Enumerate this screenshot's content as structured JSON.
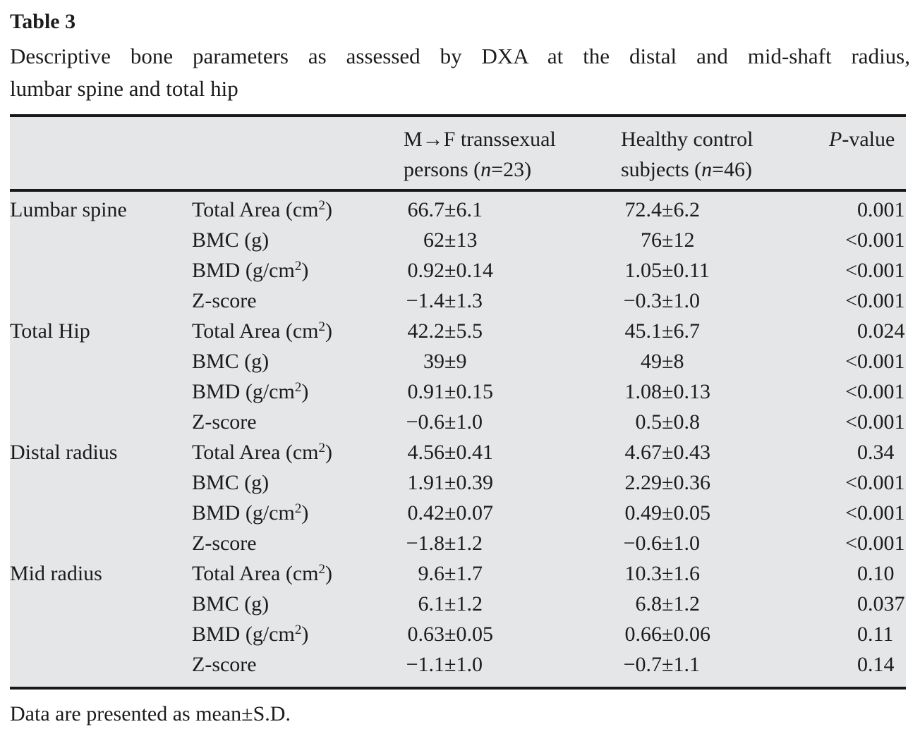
{
  "colors": {
    "table_bg": "#e5e6e7",
    "rule": "#191919",
    "text": "#1c1c1c"
  },
  "title": "Table 3",
  "caption_line1": "Descriptive bone parameters as assessed by DXA at the distal and mid-shaft radius,",
  "caption_line2": "lumbar spine and total hip",
  "header": {
    "col_transsexual": {
      "line1": "M→F transsexual",
      "line2_pre": "persons (",
      "line2_var": "n",
      "line2_post": "=23)"
    },
    "col_control": {
      "line1": "Healthy control",
      "line2_pre": "subjects (",
      "line2_var": "n",
      "line2_post": "=46)"
    },
    "col_pvalue": {
      "var": "P",
      "post": "-value"
    }
  },
  "pm": "±",
  "groups": [
    {
      "label": "Lumbar spine",
      "rows": [
        {
          "param_pre": "Total Area (cm",
          "param_sup": "2",
          "param_post": ")",
          "t_num": "66.7",
          "t_sd": "6.1",
          "c_num": "72.4",
          "c_sd": "6.2",
          "p_lt": "",
          "p_val": "0.001"
        },
        {
          "param_pre": "BMC (g)",
          "param_sup": "",
          "param_post": "",
          "t_num": "62",
          "t_sd": "13",
          "c_num": "76",
          "c_sd": "12",
          "p_lt": "<",
          "p_val": "0.001"
        },
        {
          "param_pre": "BMD (g/cm",
          "param_sup": "2",
          "param_post": ")",
          "t_num": "0.92",
          "t_sd": "0.14",
          "c_num": "1.05",
          "c_sd": "0.11",
          "p_lt": "<",
          "p_val": "0.001"
        },
        {
          "param_pre": "Z-score",
          "param_sup": "",
          "param_post": "",
          "t_num": "−1.4",
          "t_sd": "1.3",
          "c_num": "−0.3",
          "c_sd": "1.0",
          "p_lt": "<",
          "p_val": "0.001"
        }
      ]
    },
    {
      "label": "Total Hip",
      "rows": [
        {
          "param_pre": "Total Area (cm",
          "param_sup": "2",
          "param_post": ")",
          "t_num": "42.2",
          "t_sd": "5.5",
          "c_num": "45.1",
          "c_sd": "6.7",
          "p_lt": "",
          "p_val": "0.024"
        },
        {
          "param_pre": "BMC (g)",
          "param_sup": "",
          "param_post": "",
          "t_num": "39",
          "t_sd": "9",
          "c_num": "49",
          "c_sd": "8",
          "p_lt": "<",
          "p_val": "0.001"
        },
        {
          "param_pre": "BMD (g/cm",
          "param_sup": "2",
          "param_post": ")",
          "t_num": "0.91",
          "t_sd": "0.15",
          "c_num": "1.08",
          "c_sd": "0.13",
          "p_lt": "<",
          "p_val": "0.001"
        },
        {
          "param_pre": "Z-score",
          "param_sup": "",
          "param_post": "",
          "t_num": "−0.6",
          "t_sd": "1.0",
          "c_num": "0.5",
          "c_sd": "0.8",
          "p_lt": "<",
          "p_val": "0.001"
        }
      ]
    },
    {
      "label": "Distal radius",
      "rows": [
        {
          "param_pre": "Total Area (cm",
          "param_sup": "2",
          "param_post": ")",
          "t_num": "4.56",
          "t_sd": "0.41",
          "c_num": "4.67",
          "c_sd": "0.43",
          "p_lt": "",
          "p_val": "0.34"
        },
        {
          "param_pre": "BMC (g)",
          "param_sup": "",
          "param_post": "",
          "t_num": "1.91",
          "t_sd": "0.39",
          "c_num": "2.29",
          "c_sd": "0.36",
          "p_lt": "<",
          "p_val": "0.001"
        },
        {
          "param_pre": "BMD (g/cm",
          "param_sup": "2",
          "param_post": ")",
          "t_num": "0.42",
          "t_sd": "0.07",
          "c_num": "0.49",
          "c_sd": "0.05",
          "p_lt": "<",
          "p_val": "0.001"
        },
        {
          "param_pre": "Z-score",
          "param_sup": "",
          "param_post": "",
          "t_num": "−1.8",
          "t_sd": "1.2",
          "c_num": "−0.6",
          "c_sd": "1.0",
          "p_lt": "<",
          "p_val": "0.001"
        }
      ]
    },
    {
      "label": "Mid radius",
      "rows": [
        {
          "param_pre": "Total Area (cm",
          "param_sup": "2",
          "param_post": ")",
          "t_num": "9.6",
          "t_sd": "1.7",
          "c_num": "10.3",
          "c_sd": "1.6",
          "p_lt": "",
          "p_val": "0.10"
        },
        {
          "param_pre": "BMC (g)",
          "param_sup": "",
          "param_post": "",
          "t_num": "6.1",
          "t_sd": "1.2",
          "c_num": "6.8",
          "c_sd": "1.2",
          "p_lt": "",
          "p_val": "0.037"
        },
        {
          "param_pre": "BMD (g/cm",
          "param_sup": "2",
          "param_post": ")",
          "t_num": "0.63",
          "t_sd": "0.05",
          "c_num": "0.66",
          "c_sd": "0.06",
          "p_lt": "",
          "p_val": "0.11"
        },
        {
          "param_pre": "Z-score",
          "param_sup": "",
          "param_post": "",
          "t_num": "−1.1",
          "t_sd": "1.0",
          "c_num": "−0.7",
          "c_sd": "1.1",
          "p_lt": "",
          "p_val": "0.14"
        }
      ]
    }
  ],
  "footnote": "Data are presented as mean±S.D."
}
